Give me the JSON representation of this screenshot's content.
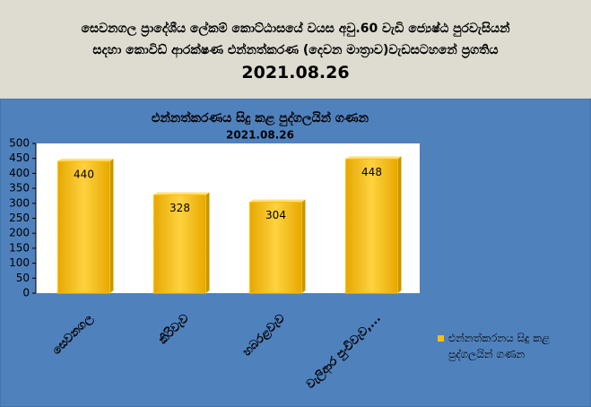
{
  "header": {
    "line1": "සෙවනගල ප්‍රාදේශීය ලේකම් කොට්ඨාසයේ වයස අවු.60 වැඩි ජ්‍යෙෂ්ඨ පුරවැසියන්",
    "line2": "සදහා කොවිඩ් ආරක්ෂණ එන්නත්කරණ (දෙවන මාත්‍රාව)වැඩසටහනේ ප්‍රගතිය",
    "date": "2021.08.26"
  },
  "chart_data": {
    "type": "bar",
    "title": "එන්නත්කරණය සිදු කළ පුද්ගලයින් ගණන",
    "subtitle": "2021.08.26",
    "categories": [
      "සෙවනගල",
      "කිරිවැව",
      "හබරළවැව",
      "වැලිආර පුංචිවැව,..."
    ],
    "series": [
      {
        "name": "එන්නත්කරනය  සිදු කළ පුද්ගලයින් ගණන",
        "color": "#ffc000",
        "values": [
          440,
          328,
          304,
          448
        ]
      }
    ],
    "ylim": [
      0,
      500
    ],
    "yticks": [
      0,
      50,
      100,
      150,
      200,
      250,
      300,
      350,
      400,
      450,
      500
    ],
    "grid": false,
    "legend": "right"
  }
}
